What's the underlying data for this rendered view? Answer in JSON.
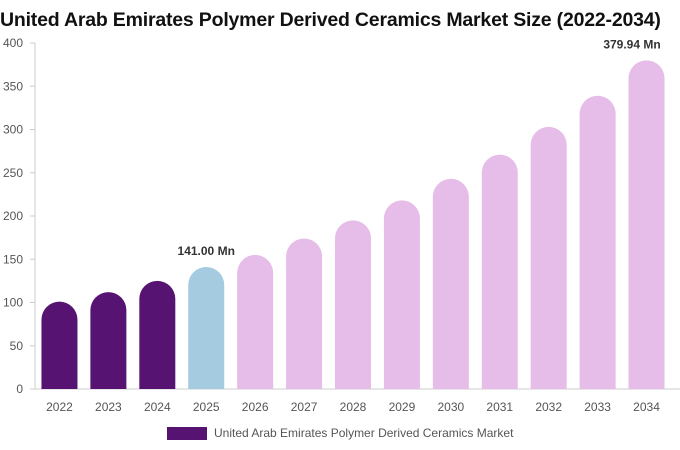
{
  "chart_data": {
    "type": "bar",
    "title": "United Arab Emirates Polymer Derived Ceramics Market Size (2022-2034)",
    "categories": [
      "2022",
      "2023",
      "2024",
      "2025",
      "2026",
      "2027",
      "2028",
      "2029",
      "2030",
      "2031",
      "2032",
      "2033",
      "2034"
    ],
    "series": [
      {
        "name": "United Arab Emirates Polymer Derived Ceramics Market",
        "values": [
          101,
          112,
          125,
          141.0,
          155,
          174,
          195,
          218,
          243,
          271,
          303,
          339,
          379.94
        ]
      }
    ],
    "data_labels": [
      {
        "index": 3,
        "text": "141.00 Mn"
      },
      {
        "index": 12,
        "text": "379.94 Mn"
      }
    ],
    "y_ticks": [
      "0",
      "50",
      "100",
      "150",
      "200",
      "250",
      "300",
      "350",
      "400"
    ],
    "ylim": [
      0,
      400
    ],
    "grid": false,
    "legend_position": "bottom",
    "colors": {
      "historical": "#561372",
      "current": "#a4cbdf",
      "forecast": "#e6bde8",
      "legend": "#561372",
      "axis": "#cccccc",
      "tick_text": "#555555",
      "label_text": "#333333"
    }
  }
}
